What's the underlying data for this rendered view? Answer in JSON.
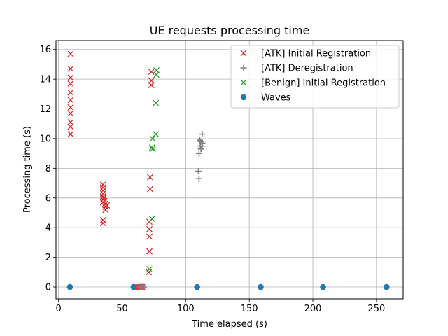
{
  "chart_data": {
    "type": "scatter",
    "title": "UE requests processing time",
    "xlabel": "Time elapsed (s)",
    "ylabel": "Processing time (s)",
    "xlim": [
      -2,
      271
    ],
    "ylim": [
      -0.8,
      16.6
    ],
    "xticks": [
      0,
      50,
      100,
      150,
      200,
      250
    ],
    "yticks": [
      0,
      2,
      4,
      6,
      8,
      10,
      12,
      14,
      16
    ],
    "grid": true,
    "legend_position": "top-right",
    "series": [
      {
        "name": "[ATK] Initial Registration",
        "marker": "x",
        "color": "#d62728",
        "points": [
          [
            9.5,
            15.7
          ],
          [
            9.5,
            14.7
          ],
          [
            9.5,
            14.1
          ],
          [
            9.5,
            13.7
          ],
          [
            9.5,
            13.1
          ],
          [
            9.5,
            12.6
          ],
          [
            9.5,
            12.1
          ],
          [
            9.5,
            11.7
          ],
          [
            9.5,
            11.1
          ],
          [
            9.5,
            10.8
          ],
          [
            9.5,
            10.3
          ],
          [
            35,
            6.9
          ],
          [
            35,
            6.7
          ],
          [
            35,
            6.5
          ],
          [
            35,
            6.3
          ],
          [
            35,
            6.1
          ],
          [
            35,
            5.9
          ],
          [
            35,
            5.7
          ],
          [
            35.5,
            6.0
          ],
          [
            36,
            5.8
          ],
          [
            36.5,
            5.6
          ],
          [
            37,
            5.4
          ],
          [
            37,
            5.2
          ],
          [
            38,
            5.5
          ],
          [
            35,
            4.5
          ],
          [
            35,
            4.3
          ],
          [
            73,
            14.5
          ],
          [
            73,
            13.9
          ],
          [
            73,
            13.6
          ],
          [
            72,
            7.4
          ],
          [
            72,
            6.6
          ],
          [
            71.5,
            4.4
          ],
          [
            71.5,
            3.9
          ],
          [
            71.5,
            3.4
          ],
          [
            71.5,
            2.4
          ],
          [
            71,
            1.0
          ],
          [
            62,
            0
          ],
          [
            63,
            0
          ],
          [
            64,
            0
          ],
          [
            65,
            0
          ],
          [
            66,
            0
          ]
        ]
      },
      {
        "name": "[ATK] Deregistration",
        "marker": "+",
        "color": "#7f7f7f",
        "points": [
          [
            113,
            10.3
          ],
          [
            111,
            9.9
          ],
          [
            112,
            9.8
          ],
          [
            113,
            9.7
          ],
          [
            111.5,
            9.5
          ],
          [
            113,
            9.5
          ],
          [
            112,
            9.3
          ],
          [
            110.5,
            9.0
          ],
          [
            110,
            7.8
          ],
          [
            110.5,
            7.3
          ],
          [
            64,
            0
          ],
          [
            65.5,
            0
          ],
          [
            67,
            0
          ]
        ]
      },
      {
        "name": "[Benign] Initial Registration",
        "marker": "x",
        "color": "#2ca02c",
        "points": [
          [
            77,
            14.6
          ],
          [
            77,
            14.3
          ],
          [
            76.5,
            12.4
          ],
          [
            76.5,
            10.3
          ],
          [
            74,
            10.0
          ],
          [
            73.5,
            9.4
          ],
          [
            74,
            9.3
          ],
          [
            73.5,
            4.6
          ],
          [
            71.5,
            1.2
          ]
        ]
      },
      {
        "name": "Waves",
        "marker": "o",
        "color": "#1f77b4",
        "points": [
          [
            9,
            0
          ],
          [
            59,
            0
          ],
          [
            109,
            0
          ],
          [
            159,
            0
          ],
          [
            208,
            0
          ],
          [
            258,
            0
          ]
        ]
      }
    ]
  }
}
